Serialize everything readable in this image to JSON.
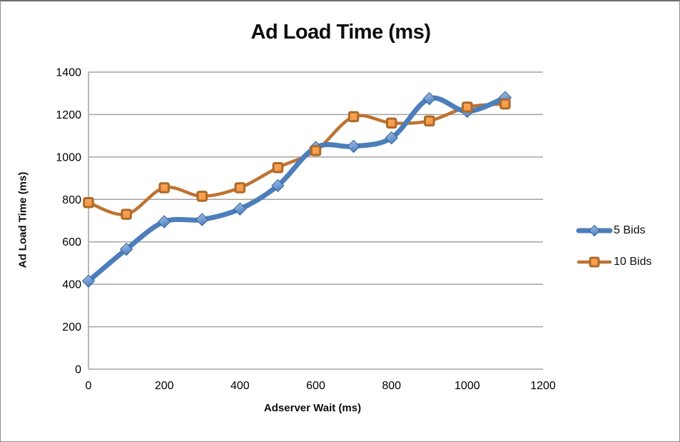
{
  "chart_data": {
    "type": "line",
    "title": "Ad Load Time (ms)",
    "xlabel": "Adserver Wait (ms)",
    "ylabel": "Ad Load Time (ms)",
    "x": [
      0,
      100,
      200,
      300,
      400,
      500,
      600,
      700,
      800,
      900,
      1000,
      1100
    ],
    "series": [
      {
        "name": "5 Bids",
        "marker": "diamond",
        "line_color": "#4C7EBB",
        "marker_fill_light": "#A7C4E8",
        "marker_fill": "#5183C3",
        "marker_edge": "#38639B",
        "values": [
          415,
          565,
          695,
          705,
          755,
          865,
          1045,
          1050,
          1090,
          1275,
          1215,
          1280
        ]
      },
      {
        "name": "10 Bids",
        "marker": "square",
        "line_color": "#BE7331",
        "marker_fill_light": "#F9A95C",
        "marker_fill": "#F79646",
        "marker_edge": "#AC6A28",
        "values": [
          785,
          730,
          855,
          815,
          855,
          950,
          1030,
          1190,
          1160,
          1170,
          1235,
          1250
        ]
      }
    ],
    "x_axis": {
      "min": 0,
      "max": 1200,
      "ticks": [
        0,
        200,
        400,
        600,
        800,
        1000,
        1200
      ]
    },
    "y_axis": {
      "min": 0,
      "max": 1400,
      "ticks": [
        0,
        200,
        400,
        600,
        800,
        1000,
        1200,
        1400
      ]
    },
    "grid": "horizontal",
    "gridline_color": "#A3A3A3",
    "axis_text_color": "#000000",
    "legend_position": "right",
    "smooth": true
  }
}
